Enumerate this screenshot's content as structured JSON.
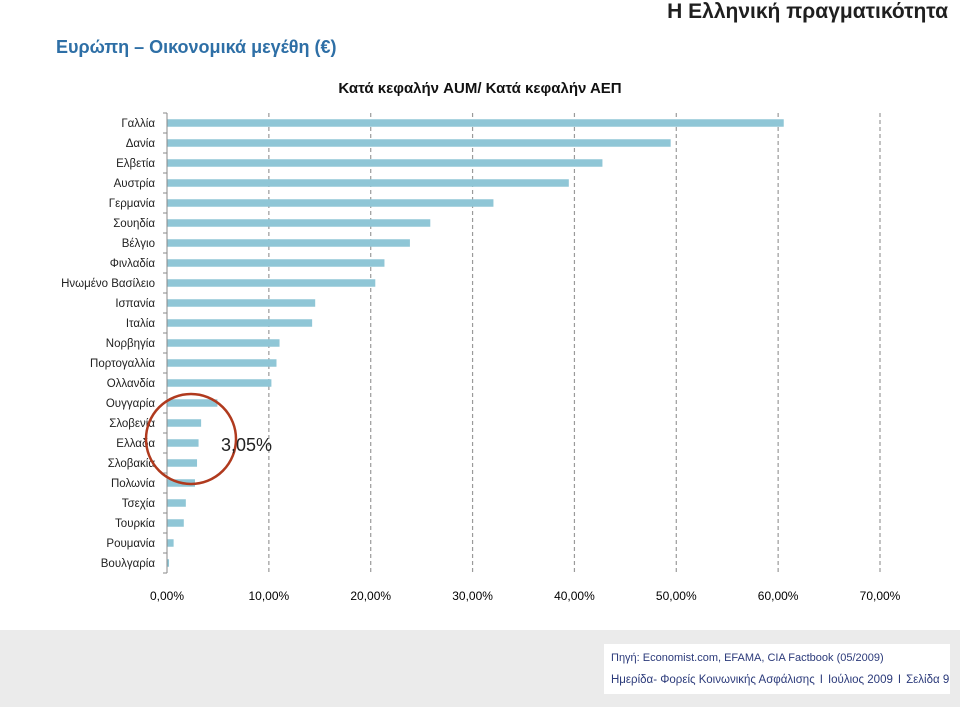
{
  "header": {
    "top_right": "Η Ελληνική πραγματικότητα",
    "subtitle": "Ευρώπη – Οικονομικά μεγέθη (€)"
  },
  "chart_data": {
    "type": "bar",
    "orientation": "horizontal",
    "title": "Κατά κεφαλήν AUM/ Κατά κεφαλήν ΑΕΠ",
    "categories": [
      "Γαλλία",
      "Δανία",
      "Ελβετία",
      "Αυστρία",
      "Γερμανία",
      "Σουηδία",
      "Βέλγιο",
      "Φινλαδία",
      "Ηνωμένο Βασίλειο",
      "Ισπανία",
      "Ιταλία",
      "Νορβηγία",
      "Πορτογαλλία",
      "Ολλανδία",
      "Ουγγαρία",
      "Σλοβενία",
      "Ελλαδα",
      "Σλοβακία",
      "Πολωνία",
      "Τσεχία",
      "Τουρκία",
      "Ρουμανία",
      "Βουλγαρία"
    ],
    "values": [
      60.5,
      49.4,
      42.7,
      39.4,
      32.0,
      25.8,
      23.8,
      21.3,
      20.4,
      14.5,
      14.2,
      11.0,
      10.7,
      10.2,
      4.9,
      3.3,
      3.05,
      2.9,
      2.7,
      1.8,
      1.6,
      0.6,
      0.15
    ],
    "xlim": [
      0,
      70
    ],
    "xticks": [
      "0,00%",
      "10,00%",
      "20,00%",
      "30,00%",
      "40,00%",
      "50,00%",
      "60,00%",
      "70,00%"
    ],
    "grid": "vertical dashed",
    "bar_color": "#8fc6d6",
    "annotation": {
      "text": "3,05%",
      "target": "Ελλαδα",
      "circle_color": "#b03a1e"
    }
  },
  "footer": {
    "source": "Πηγή: Economist.com, EFAMA, CIA Factbook (05/2009)",
    "event": "Ημερίδα- Φορείς Κοινωνικής Ασφάλισης",
    "date": "Ιούλιος 2009",
    "page": "Σελίδα 9",
    "separator": "I"
  }
}
